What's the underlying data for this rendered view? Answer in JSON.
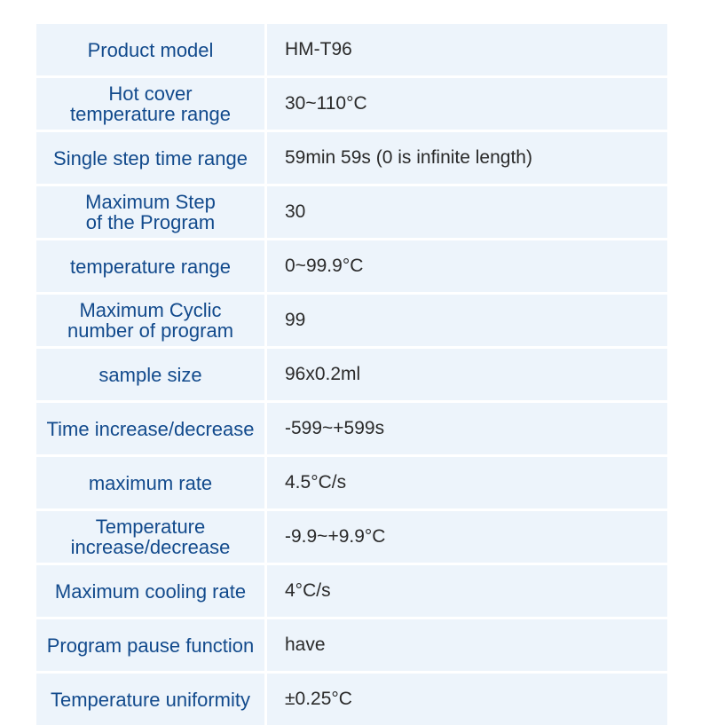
{
  "colors": {
    "cell_background": "#edf4fb",
    "label_text": "#124a8c",
    "value_text": "#2a2a2a"
  },
  "rows": [
    {
      "label": "Product model",
      "value": "HM-T96"
    },
    {
      "label": "Hot cover\ntemperature range",
      "value": "30~110°C"
    },
    {
      "label": "Single step time range",
      "value": "59min 59s (0 is infinite length)"
    },
    {
      "label": "Maximum Step\nof the Program",
      "value": "30"
    },
    {
      "label": "temperature range",
      "value": "0~99.9°C"
    },
    {
      "label": "Maximum Cyclic\nnumber of program",
      "value": "99"
    },
    {
      "label": "sample size",
      "value": "96x0.2ml"
    },
    {
      "label": "Time increase/decrease",
      "value": "-599~+599s"
    },
    {
      "label": "maximum rate",
      "value": "4.5°C/s"
    },
    {
      "label": "Temperature\nincrease/decrease",
      "value": "-9.9~+9.9°C"
    },
    {
      "label": "Maximum cooling rate",
      "value": "4°C/s"
    },
    {
      "label": "Program pause function",
      "value": "have"
    },
    {
      "label": "Temperature uniformity",
      "value": "±0.25°C"
    }
  ]
}
